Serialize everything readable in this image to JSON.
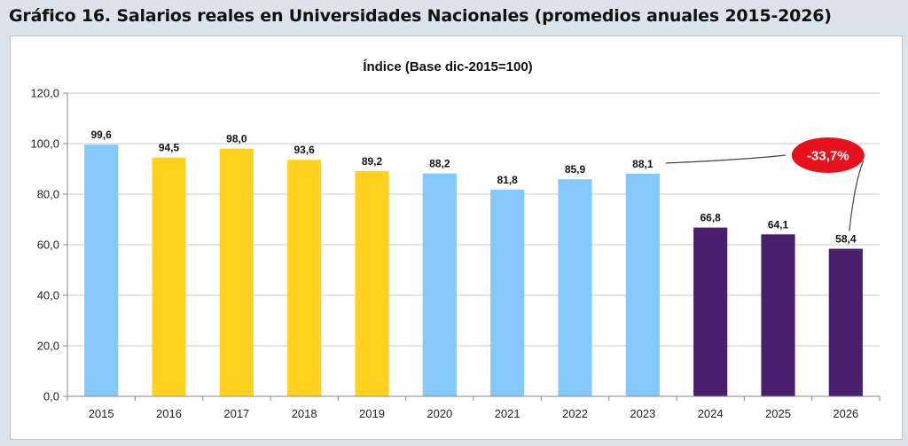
{
  "figure_title": "Gráfico 16.  Salarios reales en Universidades Nacionales (promedios anuales 2015-2026)",
  "colors": {
    "light_blue": "#85c8fb",
    "yellow": "#ffd21f",
    "purple": "#4a1f6e",
    "callout_red": "#e8101a"
  },
  "callout": {
    "text": "-33,7%",
    "from_category": "2023",
    "to_category": "2026"
  },
  "chart_data": {
    "type": "bar",
    "title": "Índice (Base dic-2015=100)",
    "xlabel": "",
    "ylabel": "",
    "ylim": [
      0,
      120
    ],
    "yticks": [
      "0,0",
      "20,0",
      "40,0",
      "60,0",
      "80,0",
      "100,0",
      "120,0"
    ],
    "grid": true,
    "categories": [
      "2015",
      "2016",
      "2017",
      "2018",
      "2019",
      "2020",
      "2021",
      "2022",
      "2023",
      "2024",
      "2025",
      "2026"
    ],
    "values": [
      99.6,
      94.5,
      98.0,
      93.6,
      89.2,
      88.2,
      81.8,
      85.9,
      88.1,
      66.8,
      64.1,
      58.4
    ],
    "value_labels": [
      "99,6",
      "94,5",
      "98,0",
      "93,6",
      "89,2",
      "88,2",
      "81,8",
      "85,9",
      "88,1",
      "66,8",
      "64,1",
      "58,4"
    ],
    "bar_colors": [
      "light_blue",
      "yellow",
      "yellow",
      "yellow",
      "yellow",
      "light_blue",
      "light_blue",
      "light_blue",
      "light_blue",
      "purple",
      "purple",
      "purple"
    ]
  }
}
